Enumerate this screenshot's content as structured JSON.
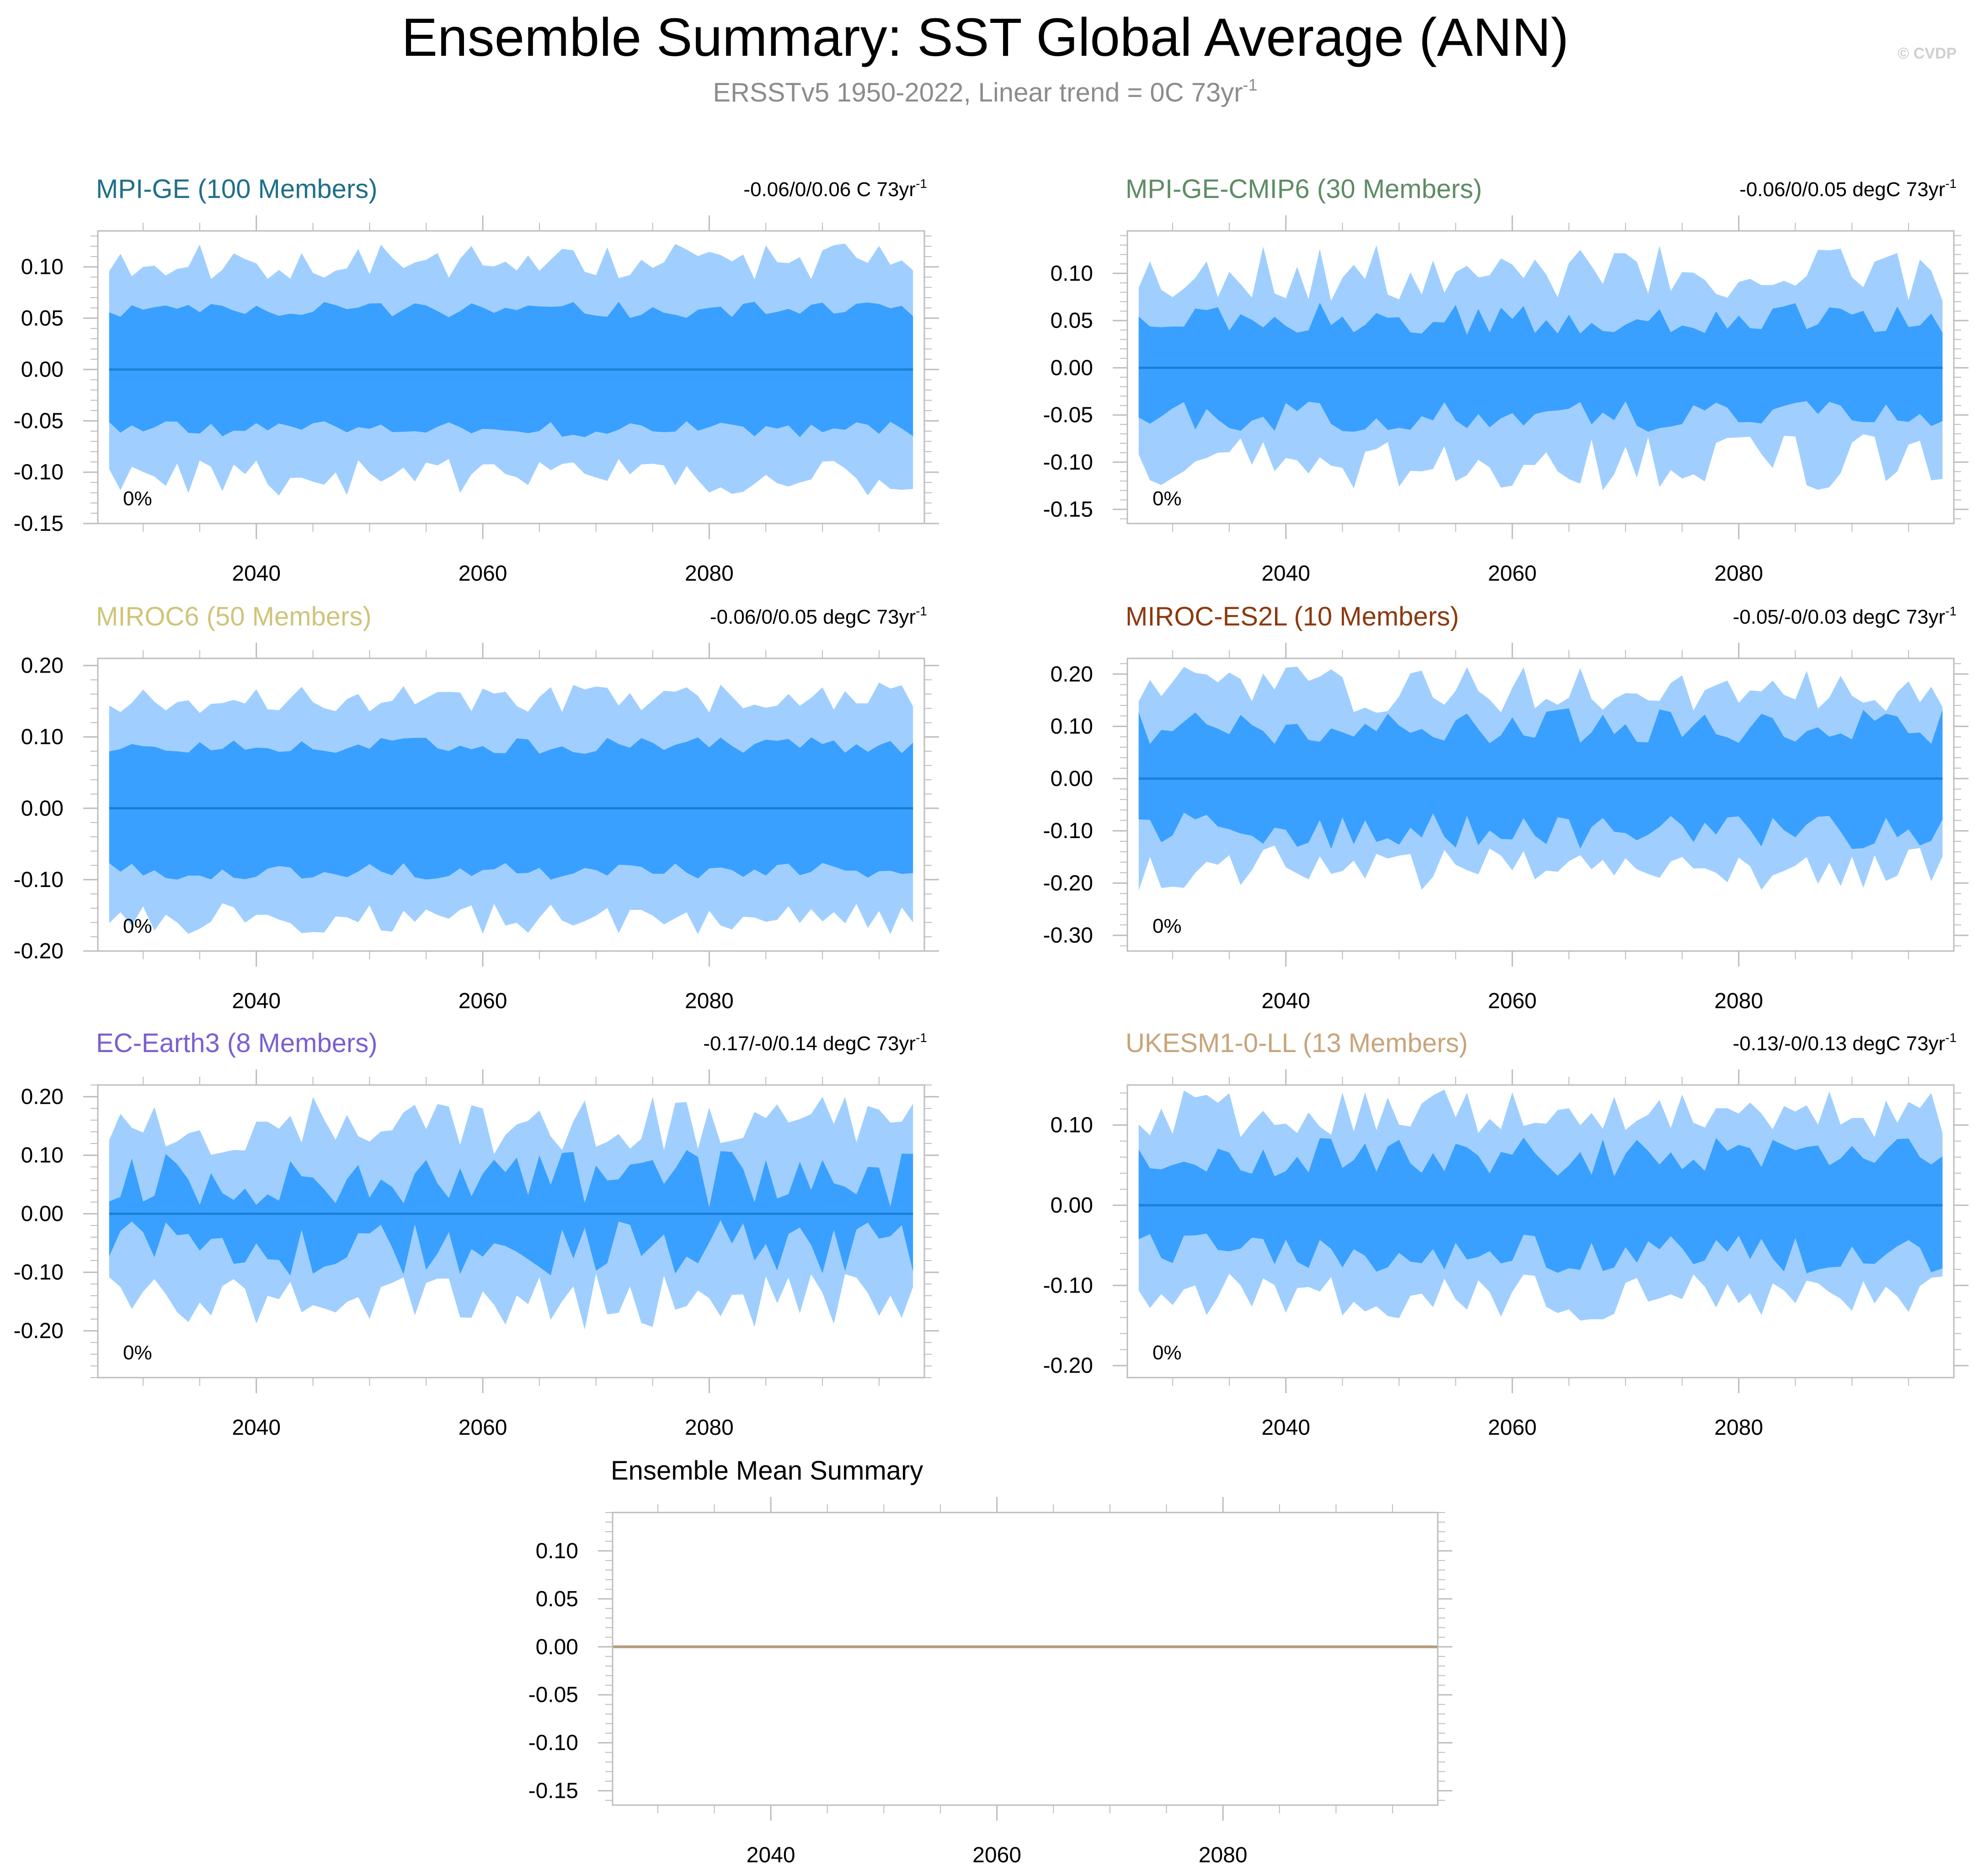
{
  "title": "Ensemble Summary: SST Global Average (ANN)",
  "subtitle": {
    "text": "ERSSTv5 1950-2022, Linear trend = 0C 73yr",
    "sup": "-1"
  },
  "watermark": "© CVDP",
  "colors": {
    "outer_band": "#a0cfff",
    "inner_band": "#3aa0ff",
    "mean_line": "#1a7fd6",
    "frame": "#bdbdbd",
    "ensemble_mean_line": "#b39a7d"
  },
  "chart_data": [
    {
      "type": "area",
      "title": "MPI-GE (100 Members)",
      "title_color": "#1f6f8b",
      "trend": {
        "text": "-0.06/0/0.06 C 73yr",
        "sup": "-1"
      },
      "percent_label": "0%",
      "x_range": [
        2026,
        2099
      ],
      "x_ticks": [
        2040,
        2060,
        2080
      ],
      "x_tick_labels": [
        "2040",
        "2060",
        "2080"
      ],
      "ylim": [
        -0.15,
        0.135
      ],
      "y_ticks": [
        0.1,
        0.05,
        0.0,
        -0.05,
        -0.1,
        -0.15
      ],
      "y_tick_labels": [
        "0.10",
        "0.05",
        "0.00",
        "-0.05",
        "-0.10",
        "-0.15"
      ],
      "outer_amp": 0.105,
      "outer_var": 0.018,
      "inner_amp": 0.058,
      "inner_var": 0.008,
      "seed": 11
    },
    {
      "type": "area",
      "title": "MPI-GE-CMIP6 (30 Members)",
      "title_color": "#5e8c66",
      "trend": {
        "text": "-0.06/0/0.05 degC 73yr",
        "sup": "-1"
      },
      "percent_label": "0%",
      "x_range": [
        2026,
        2099
      ],
      "x_ticks": [
        2040,
        2060,
        2080
      ],
      "x_tick_labels": [
        "2040",
        "2060",
        "2080"
      ],
      "ylim": [
        -0.165,
        0.145
      ],
      "y_ticks": [
        0.1,
        0.05,
        0.0,
        -0.05,
        -0.1,
        -0.15
      ],
      "y_tick_labels": [
        "0.10",
        "0.05",
        "0.00",
        "-0.05",
        "-0.10",
        "-0.15"
      ],
      "outer_amp": 0.1,
      "outer_var": 0.03,
      "inner_amp": 0.052,
      "inner_var": 0.017,
      "seed": 23
    },
    {
      "type": "area",
      "title": "MIROC6 (50 Members)",
      "title_color": "#cfc47a",
      "trend": {
        "text": "-0.06/0/0.05 degC 73yr",
        "sup": "-1"
      },
      "percent_label": "0%",
      "x_range": [
        2026,
        2099
      ],
      "x_ticks": [
        2040,
        2060,
        2080
      ],
      "x_tick_labels": [
        "2040",
        "2060",
        "2080"
      ],
      "ylim": [
        -0.2,
        0.21
      ],
      "y_ticks": [
        0.2,
        0.1,
        0.0,
        -0.1,
        -0.2
      ],
      "y_tick_labels": [
        "0.20",
        "0.10",
        "0.00",
        "-0.10",
        "-0.20"
      ],
      "outer_amp": 0.155,
      "outer_var": 0.022,
      "inner_amp": 0.088,
      "inner_var": 0.012,
      "seed": 37
    },
    {
      "type": "area",
      "title": "MIROC-ES2L (10 Members)",
      "title_color": "#8b3a0f",
      "trend": {
        "text": "-0.05/-0/0.03 degC 73yr",
        "sup": "-1"
      },
      "percent_label": "0%",
      "x_range": [
        2026,
        2099
      ],
      "x_ticks": [
        2040,
        2060,
        2080
      ],
      "x_tick_labels": [
        "2040",
        "2060",
        "2080"
      ],
      "ylim": [
        -0.33,
        0.23
      ],
      "y_ticks": [
        0.2,
        0.1,
        0.0,
        -0.1,
        -0.2,
        -0.3
      ],
      "y_tick_labels": [
        "0.20",
        "0.10",
        "0.00",
        "-0.10",
        "-0.20",
        "-0.30"
      ],
      "outer_amp": 0.17,
      "outer_var": 0.045,
      "inner_amp": 0.1,
      "inner_var": 0.035,
      "seed": 41
    },
    {
      "type": "area",
      "title": "EC-Earth3 (8 Members)",
      "title_color": "#7b5fd0",
      "trend": {
        "text": "-0.17/-0/0.14 degC 73yr",
        "sup": "-1"
      },
      "percent_label": "0%",
      "x_range": [
        2026,
        2099
      ],
      "x_ticks": [
        2040,
        2060,
        2080
      ],
      "x_tick_labels": [
        "2040",
        "2060",
        "2080"
      ],
      "ylim": [
        -0.28,
        0.22
      ],
      "y_ticks": [
        0.2,
        0.1,
        0.0,
        -0.1,
        -0.2
      ],
      "y_tick_labels": [
        "0.20",
        "0.10",
        "0.00",
        "-0.10",
        "-0.20"
      ],
      "outer_amp": 0.15,
      "outer_var": 0.05,
      "inner_amp": 0.06,
      "inner_var": 0.05,
      "seed": 53
    },
    {
      "type": "area",
      "title": "UKESM1-0-LL (13 Members)",
      "title_color": "#c8a47a",
      "trend": {
        "text": "-0.13/-0/0.13 degC 73yr",
        "sup": "-1"
      },
      "percent_label": "0%",
      "x_range": [
        2026,
        2099
      ],
      "x_ticks": [
        2040,
        2060,
        2080
      ],
      "x_tick_labels": [
        "2040",
        "2060",
        "2080"
      ],
      "ylim": [
        -0.215,
        0.15
      ],
      "y_ticks": [
        0.1,
        0.0,
        -0.1,
        -0.2
      ],
      "y_tick_labels": [
        "0.10",
        "0.00",
        "-0.10",
        "-0.20"
      ],
      "outer_amp": 0.115,
      "outer_var": 0.03,
      "inner_amp": 0.06,
      "inner_var": 0.025,
      "seed": 67
    },
    {
      "type": "line",
      "title": "Ensemble Mean Summary",
      "title_color": "#000000",
      "x_range": [
        2026,
        2099
      ],
      "x_ticks": [
        2040,
        2060,
        2080
      ],
      "x_tick_labels": [
        "2040",
        "2060",
        "2080"
      ],
      "ylim": [
        -0.165,
        0.14
      ],
      "y_ticks": [
        0.1,
        0.05,
        0.0,
        -0.05,
        -0.1,
        -0.15
      ],
      "y_tick_labels": [
        "0.10",
        "0.05",
        "0.00",
        "-0.05",
        "-0.10",
        "-0.15"
      ],
      "series": [
        {
          "name": "ensemble-mean",
          "x": [
            2026,
            2099
          ],
          "y": [
            0.0,
            0.0
          ]
        }
      ]
    }
  ]
}
